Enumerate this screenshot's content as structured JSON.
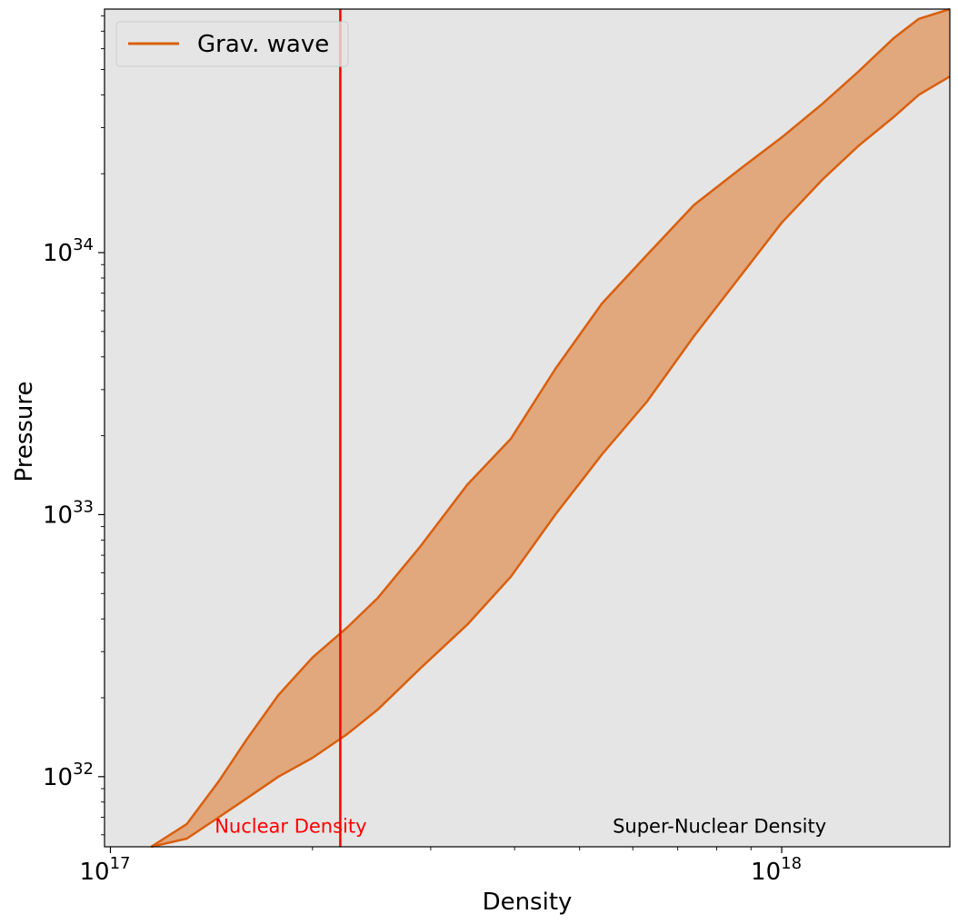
{
  "chart_data": {
    "type": "area",
    "xlabel": "Density",
    "ylabel": "Pressure",
    "xscale": "log",
    "yscale": "log",
    "xlim": [
      9.8e+16,
      1.78e+18
    ],
    "ylim": [
      5.4e+31,
      8.5e+34
    ],
    "grid": false,
    "background": "#e5e5e5",
    "x_ticks": [
      {
        "value": 1e+17,
        "base": "10",
        "exp": "17"
      },
      {
        "value": 1e+18,
        "base": "10",
        "exp": "18"
      }
    ],
    "y_ticks": [
      {
        "value": 1e+32,
        "base": "10",
        "exp": "32"
      },
      {
        "value": 1e+33,
        "base": "10",
        "exp": "33"
      },
      {
        "value": 1e+34,
        "base": "10",
        "exp": "34"
      }
    ],
    "legend": {
      "position": "top-left",
      "entries": [
        {
          "label": "Grav. wave",
          "color": "#d95f0e"
        }
      ]
    },
    "series": [
      {
        "name": "Grav. wave",
        "color": "#d95f0e",
        "fill": "#e1a87d",
        "upper": {
          "x": [
            1.15e+17,
            1.3e+17,
            1.45e+17,
            1.6e+17,
            1.78e+17,
            2e+17,
            2.25e+17,
            2.5e+17,
            2.9e+17,
            3.4e+17,
            3.95e+17,
            4.6e+17,
            5.4e+17,
            6.3e+17,
            7.4e+17,
            8.7e+17,
            1e+18,
            1.15e+18,
            1.3e+18,
            1.47e+18,
            1.6e+18,
            1.78e+18
          ],
          "y": [
            5.4e+31,
            6.6e+31,
            9.6e+31,
            1.4e+32,
            2.05e+32,
            2.85e+32,
            3.7e+32,
            4.8e+32,
            7.6e+32,
            1.3e+33,
            1.95e+33,
            3.6e+33,
            6.4e+33,
            9.8e+33,
            1.52e+34,
            2.1e+34,
            2.75e+34,
            3.7e+34,
            4.9e+34,
            6.6e+34,
            7.8e+34,
            8.5e+34
          ]
        },
        "lower": {
          "x": [
            1.15e+17,
            1.3e+17,
            1.45e+17,
            1.6e+17,
            1.78e+17,
            2e+17,
            2.25e+17,
            2.5e+17,
            2.9e+17,
            3.4e+17,
            3.95e+17,
            4.6e+17,
            5.4e+17,
            6.3e+17,
            7.4e+17,
            8.7e+17,
            1e+18,
            1.15e+18,
            1.3e+18,
            1.47e+18,
            1.6e+18,
            1.78e+18
          ],
          "y": [
            5.4e+31,
            5.8e+31,
            7e+31,
            8.3e+31,
            1e+32,
            1.18e+32,
            1.45e+32,
            1.8e+32,
            2.6e+32,
            3.8e+32,
            5.8e+32,
            1e+33,
            1.7e+33,
            2.7e+33,
            4.8e+33,
            8.2e+33,
            1.3e+34,
            1.9e+34,
            2.55e+34,
            3.3e+34,
            4e+34,
            4.7e+34
          ]
        }
      }
    ],
    "vlines": [
      {
        "x": 2.2e+17,
        "color": "#ff0000"
      }
    ],
    "annotations": [
      {
        "text": "Nuclear Density",
        "x": 1.43e+17,
        "y": 6.1e+31,
        "color": "#ff0000"
      },
      {
        "text": "Super-Nuclear Density",
        "x": 5.6e+17,
        "y": 6.1e+31,
        "color": "#000000"
      }
    ]
  }
}
